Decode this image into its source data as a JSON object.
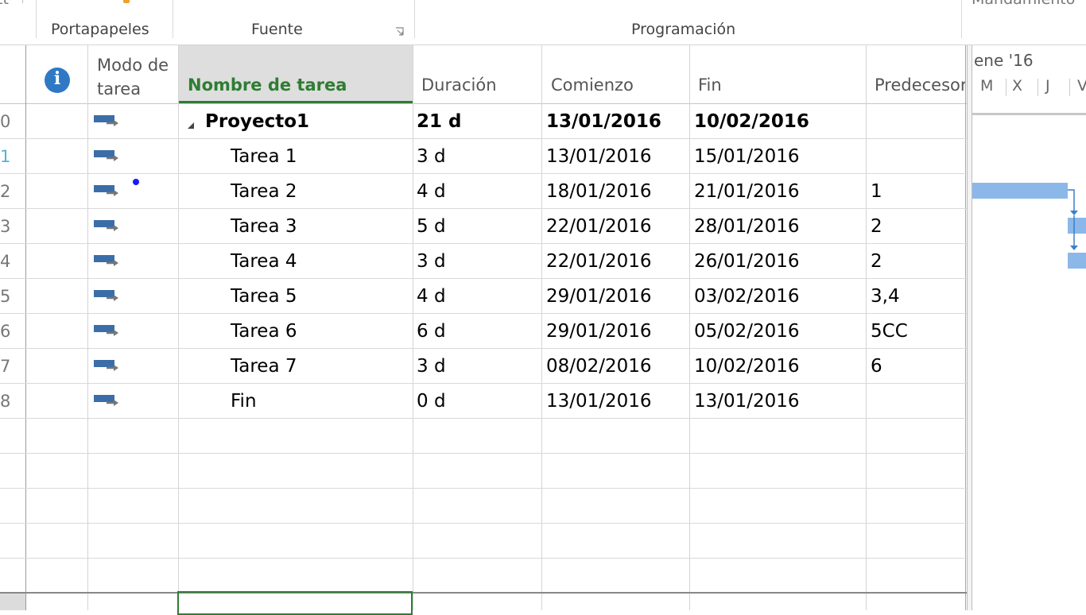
{
  "ribbon": {
    "left_cut": "tt",
    "groups": [
      "Portapapeles",
      "Fuente",
      "Programación"
    ],
    "right_cut": "Mandamiento"
  },
  "grid": {
    "headers": {
      "info": "i",
      "mode": "Modo de\ntarea",
      "mode_line1": "Modo de",
      "mode_line2": "tarea",
      "name": "Nombre de tarea",
      "duration": "Duración",
      "start": "Comienzo",
      "finish": "Fin",
      "predecessors": "Predecesor"
    },
    "rows": [
      {
        "num": "0",
        "name": "Proyecto1",
        "duration": "21 d",
        "start": "13/01/2016",
        "finish": "10/02/2016",
        "pred": "",
        "summary": true
      },
      {
        "num": "1",
        "name": "Tarea 1",
        "duration": "3 d",
        "start": "13/01/2016",
        "finish": "15/01/2016",
        "pred": ""
      },
      {
        "num": "2",
        "name": "Tarea 2",
        "duration": "4 d",
        "start": "18/01/2016",
        "finish": "21/01/2016",
        "pred": "1"
      },
      {
        "num": "3",
        "name": "Tarea 3",
        "duration": "5 d",
        "start": "22/01/2016",
        "finish": "28/01/2016",
        "pred": "2"
      },
      {
        "num": "4",
        "name": "Tarea 4",
        "duration": "3 d",
        "start": "22/01/2016",
        "finish": "26/01/2016",
        "pred": "2"
      },
      {
        "num": "5",
        "name": "Tarea 5",
        "duration": "4 d",
        "start": "29/01/2016",
        "finish": "03/02/2016",
        "pred": "3,4"
      },
      {
        "num": "6",
        "name": "Tarea 6",
        "duration": "6 d",
        "start": "29/01/2016",
        "finish": "05/02/2016",
        "pred": "5CC"
      },
      {
        "num": "7",
        "name": "Tarea 7",
        "duration": "3 d",
        "start": "08/02/2016",
        "finish": "10/02/2016",
        "pred": "6"
      },
      {
        "num": "8",
        "name": "Fin",
        "duration": "0 d",
        "start": "13/01/2016",
        "finish": "13/01/2016",
        "pred": ""
      }
    ]
  },
  "gantt": {
    "month": "ene '16",
    "days": [
      "M",
      "X",
      "J",
      "V"
    ]
  },
  "colors": {
    "accent_green": "#2e7d32",
    "gantt_bar": "#8bb8e8",
    "gantt_link": "#3d7fc9",
    "info_icon": "#2f78c4"
  }
}
